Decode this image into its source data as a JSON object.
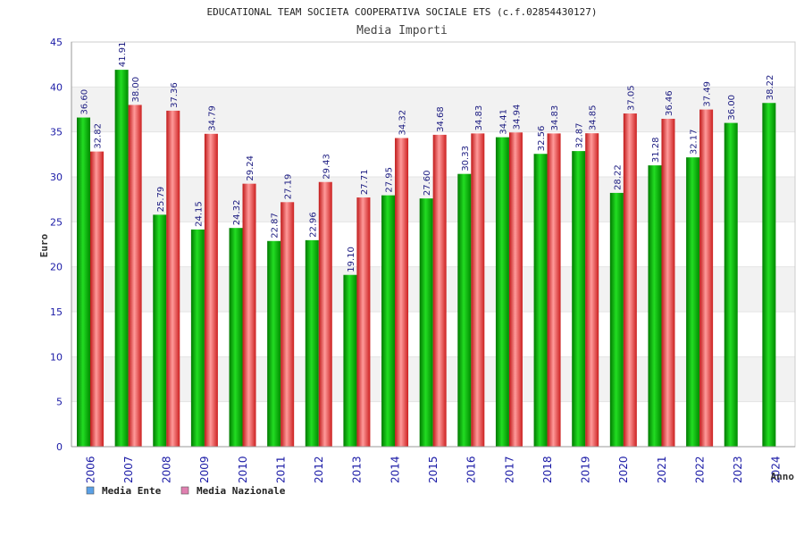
{
  "chart_data": {
    "type": "bar",
    "title": "EDUCATIONAL TEAM SOCIETA COOPERATIVA SOCIALE ETS (c.f.02854430127)",
    "subtitle": "Media Importi",
    "xlabel": "Anno",
    "ylabel": "Euro",
    "ylim": [
      0,
      45
    ],
    "yticks": [
      "0",
      "5",
      "10",
      "15",
      "20",
      "25",
      "30",
      "35",
      "40",
      "45"
    ],
    "grid": true,
    "legend_position": "bottom-left",
    "categories": [
      "2006",
      "2007",
      "2008",
      "2009",
      "2010",
      "2011",
      "2012",
      "2013",
      "2014",
      "2015",
      "2016",
      "2017",
      "2018",
      "2019",
      "2020",
      "2021",
      "2022",
      "2023",
      "2024"
    ],
    "series": [
      {
        "name": "Media Ente",
        "color": "#00aa00",
        "legend_color": "#5aa0e6",
        "values": [
          36.6,
          41.91,
          25.79,
          24.15,
          24.32,
          22.87,
          22.96,
          19.1,
          27.95,
          27.6,
          30.33,
          34.41,
          32.56,
          32.87,
          28.22,
          31.28,
          32.17,
          36.0,
          38.22
        ],
        "labels": [
          "36.60",
          "41.91",
          "25.79",
          "24.15",
          "24.32",
          "22.87",
          "22.96",
          "19.10",
          "27.95",
          "27.60",
          "30.33",
          "34.41",
          "32.56",
          "32.87",
          "28.22",
          "31.28",
          "32.17",
          "36.00",
          "38.22"
        ]
      },
      {
        "name": "Media Nazionale",
        "color": "#e03030",
        "legend_color": "#e080b0",
        "values": [
          32.82,
          38.0,
          37.36,
          34.79,
          29.24,
          27.19,
          29.43,
          27.71,
          34.32,
          34.68,
          34.83,
          34.94,
          34.83,
          34.85,
          37.05,
          36.46,
          37.49,
          null,
          null
        ],
        "labels": [
          "32.82",
          "38.00",
          "37.36",
          "34.79",
          "29.24",
          "27.19",
          "29.43",
          "27.71",
          "34.32",
          "34.68",
          "34.83",
          "34.94",
          "34.83",
          "34.85",
          "37.05",
          "36.46",
          "37.49",
          null,
          null
        ]
      }
    ]
  }
}
